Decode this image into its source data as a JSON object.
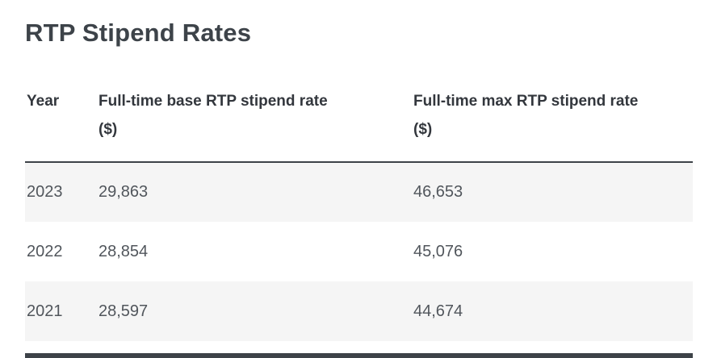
{
  "title": "RTP Stipend Rates",
  "table": {
    "headers": [
      {
        "line1": "Year",
        "line2": ""
      },
      {
        "line1": "Full-time base RTP stipend rate",
        "line2": "($)"
      },
      {
        "line1": "Full-time max RTP stipend rate",
        "line2": "($)"
      }
    ],
    "rows": [
      {
        "year": "2023",
        "base_rate": "29,863",
        "max_rate": "46,653"
      },
      {
        "year": "2022",
        "base_rate": "28,854",
        "max_rate": "45,076"
      },
      {
        "year": "2021",
        "base_rate": "28,597",
        "max_rate": "44,674"
      }
    ]
  },
  "colors": {
    "heading_text": "#3d4349",
    "header_text": "#33373d",
    "body_text": "#51565c",
    "row_stripe": "#f5f5f5",
    "header_rule": "#3d4248",
    "bottom_divider": "#3d4248"
  }
}
